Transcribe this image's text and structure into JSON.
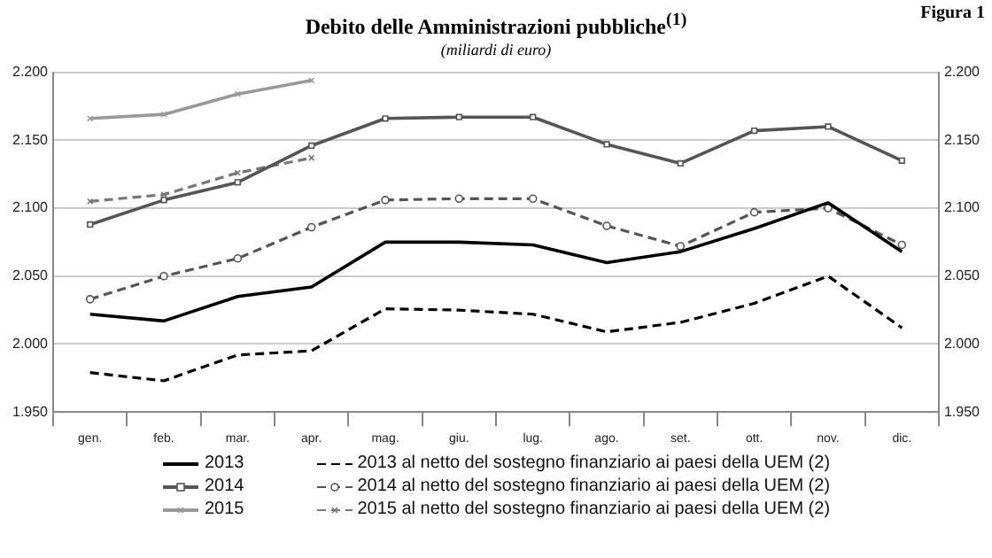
{
  "chart_data": {
    "type": "line",
    "title": "Debito delle Amministrazioni pubbliche$^{(1)}$",
    "subtitle": "(miliardi di euro)",
    "annotations": [
      "Figura 1"
    ],
    "categories": [
      "gen.",
      "feb.",
      "mar.",
      "apr.",
      "mag.",
      "giu.",
      "lug.",
      "ago.",
      "set.",
      "ott.",
      "nov.",
      "dic."
    ],
    "series": [
      {
        "name": "2013",
        "color": "#000000",
        "line_style": "solid",
        "marker": "none",
        "values": [
          2022,
          2017,
          2035,
          2042,
          2075,
          2075,
          2073,
          2060,
          2068,
          2085,
          2104,
          2068
        ]
      },
      {
        "name": "2014",
        "color": "#555555",
        "line_style": "solid",
        "marker": "square",
        "values": [
          2088,
          2106,
          2119,
          2146,
          2166,
          2167,
          2167,
          2147,
          2133,
          2157,
          2160,
          2135
        ]
      },
      {
        "name": "2015",
        "color": "#999999",
        "line_style": "solid",
        "marker": "cross",
        "values": [
          2166,
          2169,
          2184,
          2194,
          null,
          null,
          null,
          null,
          null,
          null,
          null,
          null
        ]
      },
      {
        "name": "2013 al netto del sostegno finanziario ai paesi della UEM (2)",
        "color": "#000000",
        "line_style": "dashed",
        "marker": "none",
        "values": [
          1979,
          1973,
          1992,
          1995,
          2026,
          2025,
          2022,
          2009,
          2016,
          2030,
          2050,
          2012
        ]
      },
      {
        "name": "2014 al netto del sostegno finanziario ai paesi della UEM (2)",
        "color": "#555555",
        "line_style": "dashed",
        "marker": "circle",
        "values": [
          2033,
          2050,
          2063,
          2086,
          2106,
          2107,
          2107,
          2087,
          2072,
          2097,
          2100,
          2073
        ]
      },
      {
        "name": "2015 al netto del sostegno finanziario ai paesi della UEM (2)",
        "color": "#777777",
        "line_style": "dashed",
        "marker": "cross",
        "values": [
          2105,
          2110,
          2126,
          2137,
          null,
          null,
          null,
          null,
          null,
          null,
          null,
          null
        ]
      }
    ],
    "ylim": [
      1950,
      2200
    ],
    "yticks": [
      {
        "value": 1950,
        "label": "1.950"
      },
      {
        "value": 2000,
        "label": "2.000"
      },
      {
        "value": 2050,
        "label": "2.050"
      },
      {
        "value": 2100,
        "label": "2.100"
      },
      {
        "value": 2150,
        "label": "2.150"
      },
      {
        "value": 2200,
        "label": "2.200"
      }
    ],
    "y2lim": [
      1950,
      2200
    ],
    "y2ticks": [
      {
        "value": 1950,
        "label": "1.950"
      },
      {
        "value": 2000,
        "label": "2.000"
      },
      {
        "value": 2050,
        "label": "2.050"
      },
      {
        "value": 2100,
        "label": "2.100"
      },
      {
        "value": 2150,
        "label": "2.150"
      },
      {
        "value": 2200,
        "label": "2.200"
      }
    ],
    "grid": "y",
    "legend": "bottom"
  }
}
